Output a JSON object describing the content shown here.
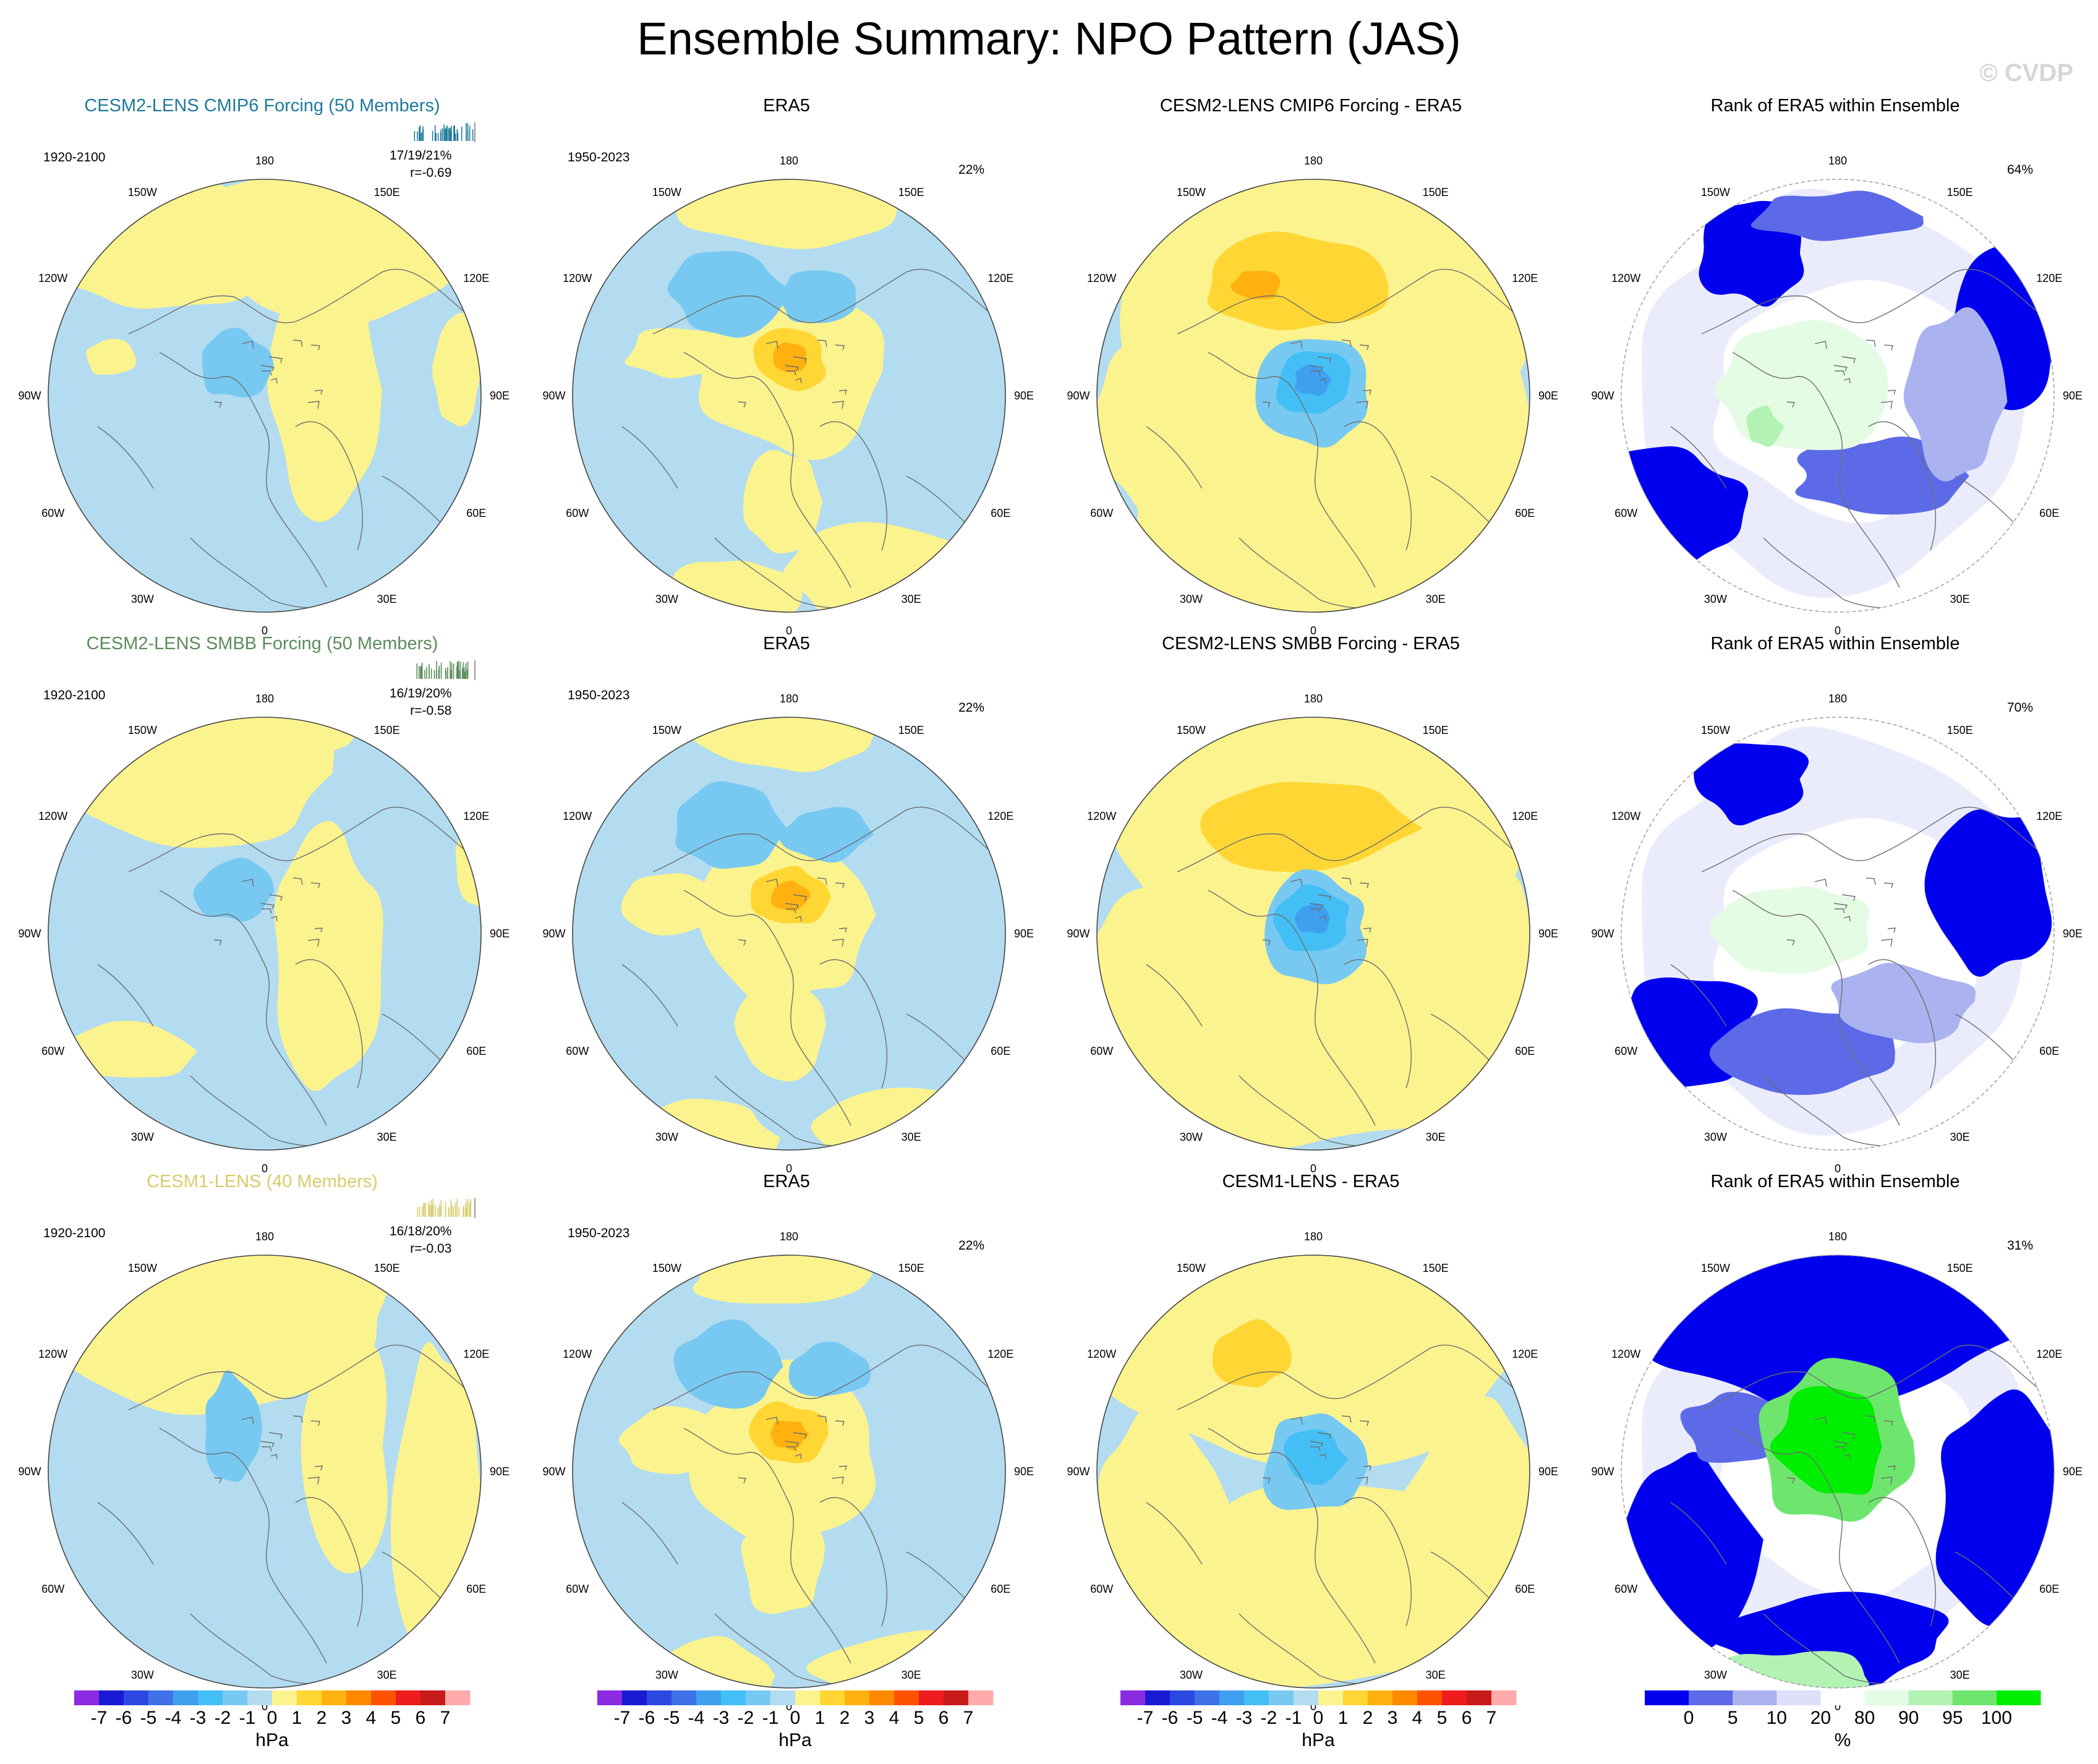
{
  "title": "Ensemble Summary: NPO Pattern (JAS)",
  "watermark": "© CVDP",
  "chart_data": {
    "type": "map-panel-grid",
    "projection": "north polar stereographic",
    "variable": "NPO pattern (sea level pressure)",
    "season": "JAS",
    "longitude_labels": [
      "180",
      "150E",
      "120E",
      "90E",
      "60E",
      "30E",
      "0",
      "30W",
      "60W",
      "90W",
      "120W",
      "150W"
    ],
    "rows": [
      {
        "model": {
          "title": "CESM2-LENS CMIP6 Forcing (50 Members)",
          "title_color": "#1f7a9a",
          "period": "1920-2100",
          "stats": "17/19/21%",
          "correlation": "r=-0.69",
          "rug_color": "#1f7a9a"
        },
        "obs": {
          "title": "ERA5",
          "period": "1950-2023",
          "pct": "22%"
        },
        "diff": {
          "title": "CESM2-LENS CMIP6 Forcing - ERA5"
        },
        "rank": {
          "title": "Rank of ERA5 within Ensemble",
          "pct": "64%"
        }
      },
      {
        "model": {
          "title": "CESM2-LENS SMBB Forcing (50 Members)",
          "title_color": "#5c8c5c",
          "period": "1920-2100",
          "stats": "16/19/20%",
          "correlation": "r=-0.58",
          "rug_color": "#5c8c5c"
        },
        "obs": {
          "title": "ERA5",
          "period": "1950-2023",
          "pct": "22%"
        },
        "diff": {
          "title": "CESM2-LENS SMBB Forcing - ERA5"
        },
        "rank": {
          "title": "Rank of ERA5 within Ensemble",
          "pct": "70%"
        }
      },
      {
        "model": {
          "title": "CESM1-LENS (40 Members)",
          "title_color": "#d8cc6a",
          "period": "1920-2100",
          "stats": "16/18/20%",
          "correlation": "r=-0.03",
          "rug_color": "#d8cc6a"
        },
        "obs": {
          "title": "ERA5",
          "period": "1950-2023",
          "pct": "22%"
        },
        "diff": {
          "title": "CESM1-LENS - ERA5"
        },
        "rank": {
          "title": "Rank of ERA5 within Ensemble",
          "pct": "31%"
        }
      }
    ],
    "pressure_colorbar": {
      "label": "hPa",
      "ticks": [
        "-7",
        "-6",
        "-5",
        "-4",
        "-3",
        "-2",
        "-1",
        "0",
        "1",
        "2",
        "3",
        "4",
        "5",
        "6",
        "7"
      ],
      "colors": [
        "#8b2be2",
        "#1a1ad4",
        "#2b49e0",
        "#3f72e8",
        "#3fa0f0",
        "#44bff5",
        "#78c9f2",
        "#b3dcf0",
        "#fbf38e",
        "#ffd633",
        "#ffb10f",
        "#ff8a00",
        "#ff5200",
        "#ee1c1c",
        "#c91a1a",
        "#ffaaaa"
      ]
    },
    "rank_colorbar": {
      "label": "%",
      "ticks": [
        "0",
        "5",
        "10",
        "20",
        "80",
        "90",
        "95",
        "100"
      ],
      "colors": [
        "#0000ee",
        "#5c6ae8",
        "#aab2f0",
        "#dde0f8",
        "#ffffff",
        "#e4fbe4",
        "#b2f2b2",
        "#6ee66e",
        "#00ee00"
      ]
    }
  }
}
